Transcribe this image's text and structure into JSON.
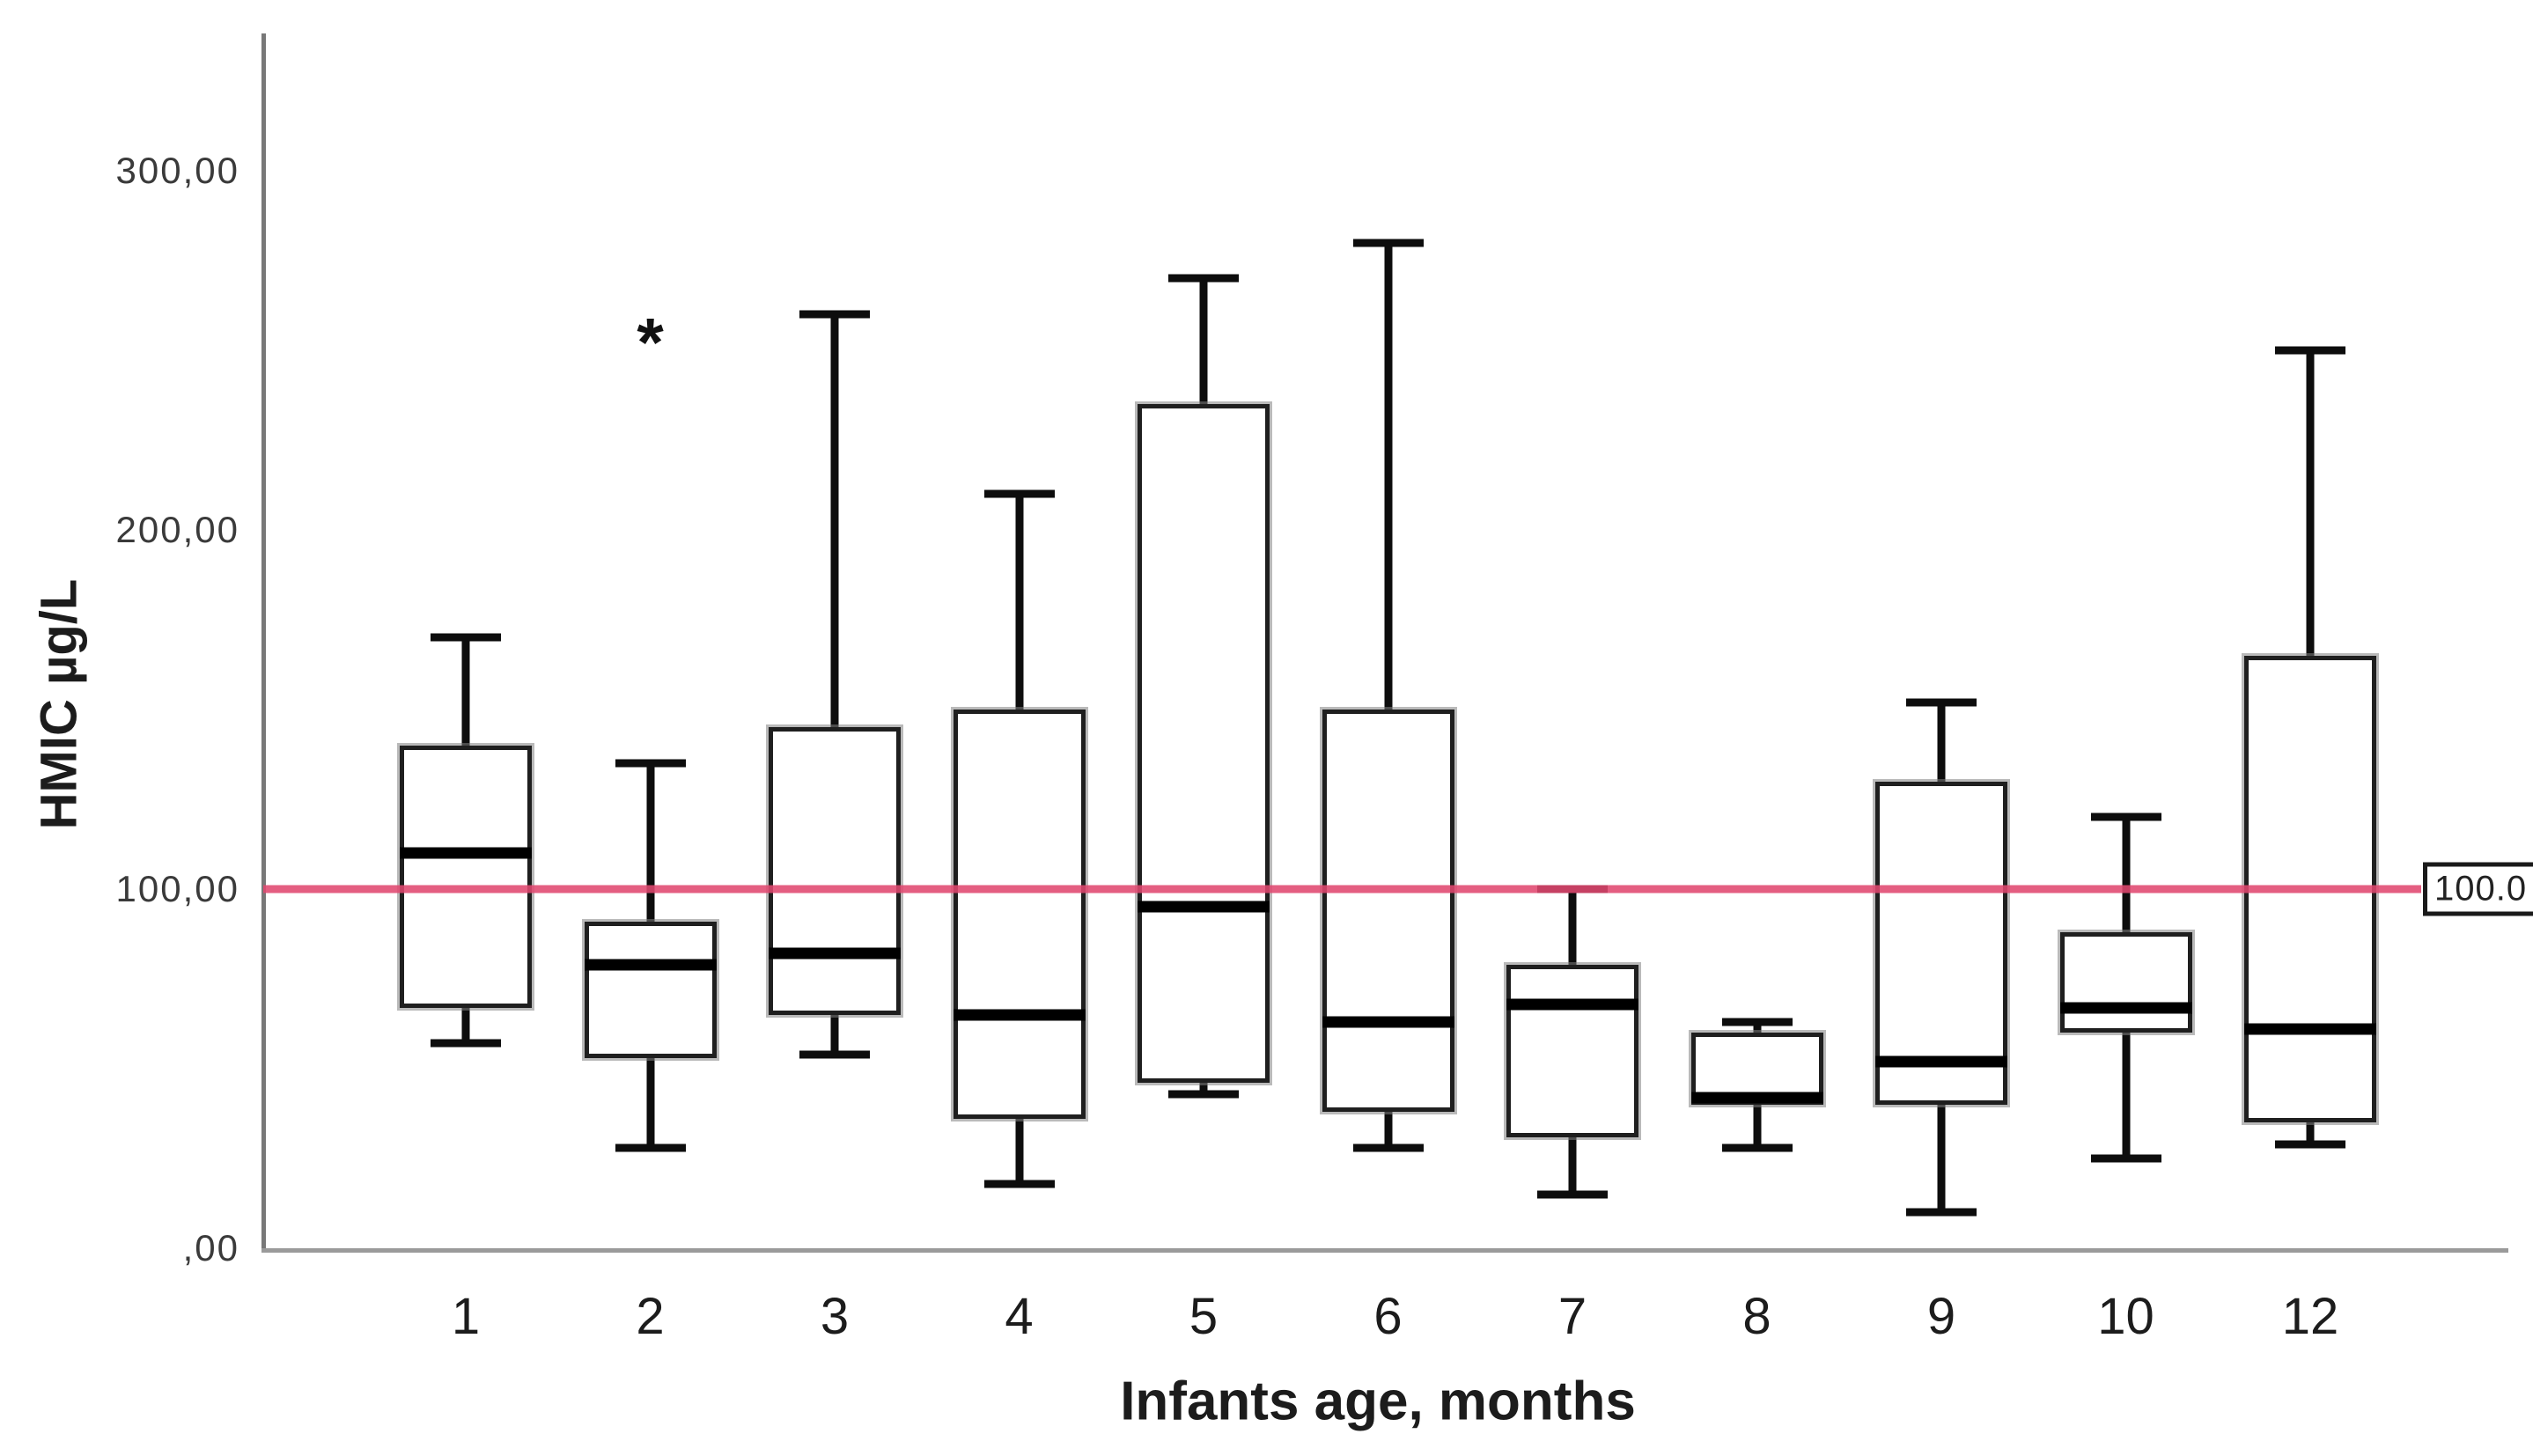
{
  "figure": {
    "outlier_marker": "*"
  },
  "chart_data": {
    "type": "box",
    "title": "",
    "xlabel": "Infants age, months",
    "ylabel": "HMIC µg/L",
    "ylim": [
      0,
      338
    ],
    "grid": false,
    "legend": null,
    "y_ticks": [
      {
        "value": 0,
        "label": ",00"
      },
      {
        "value": 100,
        "label": "100,00"
      },
      {
        "value": 200,
        "label": "200,00"
      },
      {
        "value": 300,
        "label": "300,00"
      }
    ],
    "reference_line": {
      "value": 100,
      "label": "100.0",
      "color": "#e04870"
    },
    "categories": [
      "1",
      "2",
      "3",
      "4",
      "5",
      "6",
      "7",
      "8",
      "9",
      "10",
      "12"
    ],
    "series": [
      {
        "category": "1",
        "min": 57,
        "q1": 67,
        "median": 110,
        "q3": 140,
        "max": 170,
        "outliers": []
      },
      {
        "category": "2",
        "min": 28,
        "q1": 53,
        "median": 79,
        "q3": 91,
        "max": 135,
        "outliers": [
          250
        ]
      },
      {
        "category": "3",
        "min": 54,
        "q1": 65,
        "median": 82,
        "q3": 145,
        "max": 260,
        "outliers": []
      },
      {
        "category": "4",
        "min": 18,
        "q1": 36,
        "median": 65,
        "q3": 150,
        "max": 210,
        "outliers": []
      },
      {
        "category": "5",
        "min": 43,
        "q1": 46,
        "median": 95,
        "q3": 235,
        "max": 270,
        "outliers": []
      },
      {
        "category": "6",
        "min": 28,
        "q1": 38,
        "median": 63,
        "q3": 150,
        "max": 280,
        "outliers": []
      },
      {
        "category": "7",
        "min": 15,
        "q1": 31,
        "median": 68,
        "q3": 79,
        "max": 100,
        "outliers": []
      },
      {
        "category": "8",
        "min": 28,
        "q1": 40,
        "median": 42,
        "q3": 60,
        "max": 63,
        "outliers": []
      },
      {
        "category": "9",
        "min": 10,
        "q1": 40,
        "median": 52,
        "q3": 130,
        "max": 152,
        "outliers": []
      },
      {
        "category": "10",
        "min": 25,
        "q1": 60,
        "median": 67,
        "q3": 88,
        "max": 120,
        "outliers": []
      },
      {
        "category": "12",
        "min": 29,
        "q1": 35,
        "median": 61,
        "q3": 165,
        "max": 250,
        "outliers": []
      }
    ]
  }
}
